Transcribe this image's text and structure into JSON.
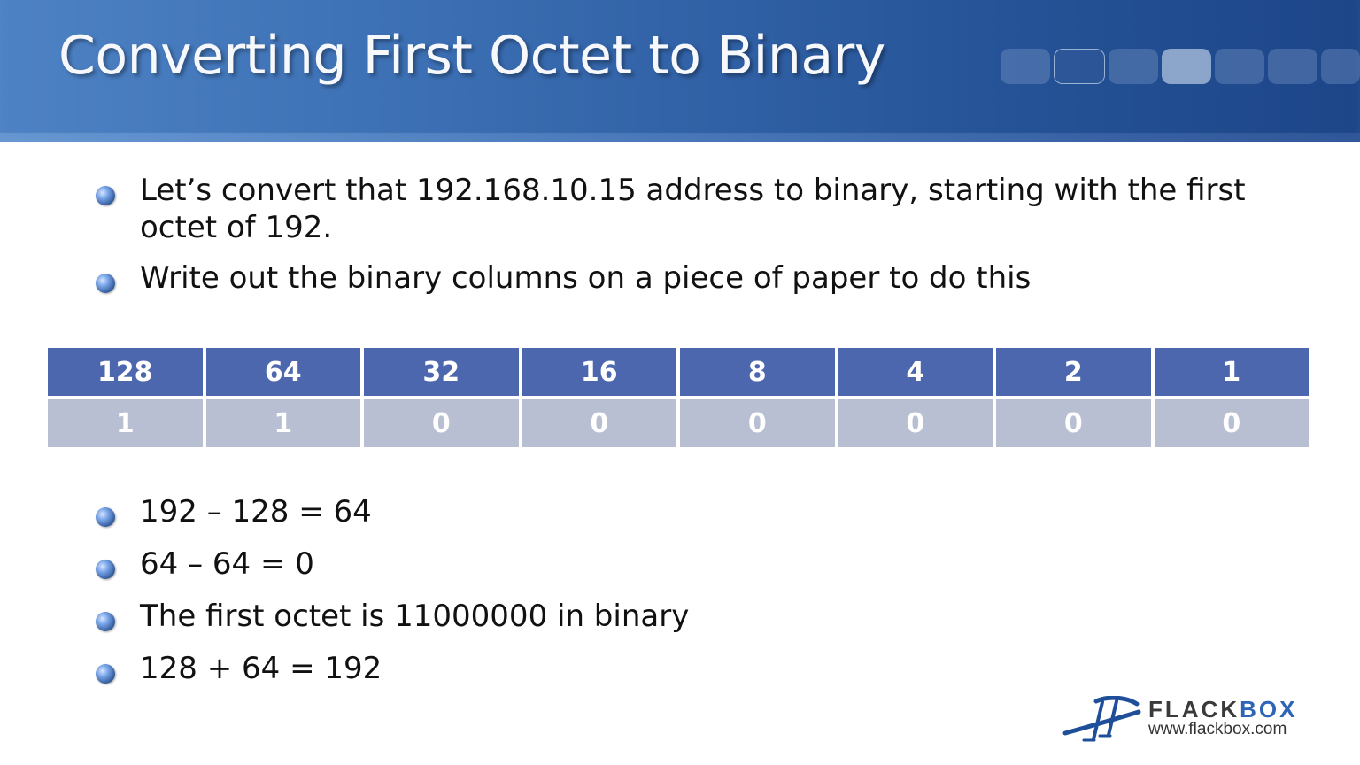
{
  "slide": {
    "title": "Converting First Octet to Binary",
    "bullets_top": [
      "Let’s convert that 192.168.10.15 address to binary, starting with the first octet of 192.",
      "Write out the binary columns on a piece of paper to do this"
    ],
    "binary_table": {
      "headers": [
        "128",
        "64",
        "32",
        "16",
        "8",
        "4",
        "2",
        "1"
      ],
      "values": [
        "1",
        "1",
        "0",
        "0",
        "0",
        "0",
        "0",
        "0"
      ]
    },
    "bullets_bottom": [
      "192 – 128 = 64",
      "64 – 64 = 0",
      "The first octet is 11000000 in binary",
      "128 + 64 = 192"
    ]
  },
  "logo": {
    "brand_prefix": "FLACK",
    "brand_suffix": "BOX",
    "url": "www.flackbox.com"
  },
  "colors": {
    "header_gradient_start": "#4d82c4",
    "header_gradient_end": "#1d4689",
    "table_header": "#4c67ad",
    "table_values": "#b8bfd3",
    "logo_blue": "#2e64b7"
  },
  "icons": {
    "bullet": "blue-sphere-bullet-icon",
    "logo_mark": "flackbox-bridge-logo-icon"
  }
}
